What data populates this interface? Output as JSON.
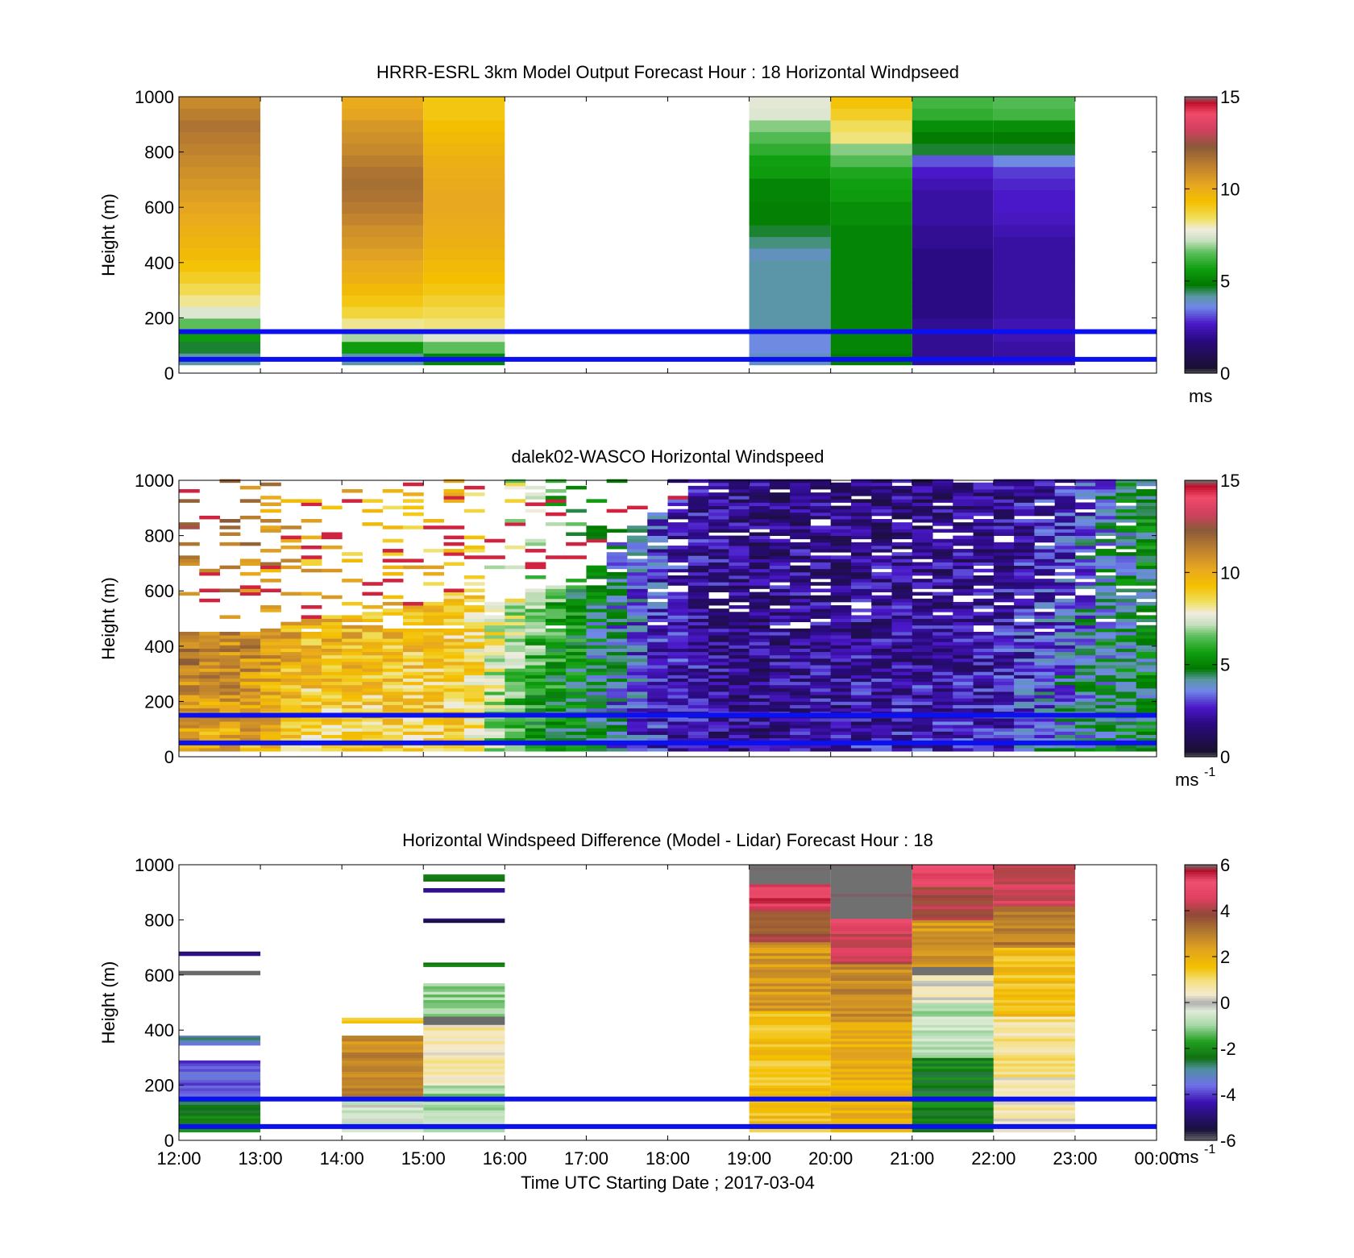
{
  "figure": {
    "xlabel": "Time UTC  Starting Date ; 2017-03-04",
    "x_ticks": [
      "12:00",
      "13:00",
      "14:00",
      "15:00",
      "16:00",
      "17:00",
      "18:00",
      "19:00",
      "20:00",
      "21:00",
      "22:00",
      "23:00",
      "00:00"
    ],
    "ylabel": "Height (m)",
    "y_ticks": [
      "0",
      "200",
      "400",
      "600",
      "800",
      "1000"
    ],
    "reference_line_color": "#0a10f0"
  },
  "chart_data": [
    {
      "type": "heatmap",
      "title": "HRRR-ESRL 3km Model Output   Forecast Hour : 18 Horizontal Windpseed",
      "xlabel": "",
      "ylabel": "Height (m)",
      "xlim_hours": [
        12,
        24
      ],
      "ylim": [
        0,
        1000
      ],
      "colorbar": {
        "ticks": [
          "0",
          "5",
          "10",
          "15"
        ],
        "range": [
          0,
          15
        ],
        "unit_label": "ms",
        "unit_sup": ""
      },
      "reference_heights_m": [
        150,
        50
      ],
      "columns": [
        {
          "t0": 12,
          "t1": 13,
          "bottom_m": 30,
          "values": [
            4,
            4.5,
            5.5,
            6.5,
            7.5,
            8.2,
            8.6,
            9,
            9.3,
            9.6,
            9.8,
            10,
            10.2,
            10.4,
            10.6,
            10.8,
            11,
            11.2,
            11.4,
            11.6,
            11.8,
            11.5,
            11.2
          ]
        },
        {
          "t0": 14,
          "t1": 15,
          "bottom_m": 30,
          "values": [
            4,
            5.5,
            7,
            8.2,
            8.8,
            9.2,
            9.6,
            10,
            10.2,
            10.5,
            10.8,
            11,
            11.3,
            11.6,
            11.8,
            11.9,
            11.8,
            11.5,
            11.2,
            11,
            10.8,
            10.4,
            10.2
          ]
        },
        {
          "t0": 15,
          "t1": 16,
          "bottom_m": 30,
          "values": [
            5,
            6.5,
            7.5,
            8.3,
            8.6,
            8.9,
            9.2,
            9.4,
            9.6,
            9.8,
            10,
            10.1,
            10.2,
            10.3,
            10.3,
            10.2,
            10.1,
            10,
            9.8,
            9.6,
            9.4,
            9.2,
            9.2
          ]
        },
        {
          "t0": 19,
          "t1": 20,
          "bottom_m": 30,
          "values": [
            3.8,
            3.5,
            3.5,
            4,
            4,
            4,
            4,
            4,
            4,
            3.8,
            4.2,
            4.5,
            4.9,
            4.9,
            5,
            5,
            5.5,
            5.6,
            6,
            6.4,
            6.8,
            7.5,
            7.6
          ]
        },
        {
          "t0": 20,
          "t1": 21,
          "bottom_m": 30,
          "values": [
            4.8,
            5,
            5,
            5,
            5,
            5,
            5,
            5,
            5,
            5,
            5,
            5,
            5.2,
            5.2,
            5.5,
            5.6,
            5.8,
            6.4,
            6.8,
            8.3,
            8.5,
            9,
            9.3
          ]
        },
        {
          "t0": 21,
          "t1": 22,
          "bottom_m": 30,
          "values": [
            1.8,
            1.8,
            1.8,
            1.8,
            1.6,
            1.6,
            1.6,
            1.6,
            1.6,
            1.6,
            1.8,
            1.8,
            2,
            2,
            2,
            2.2,
            2.5,
            3,
            4.5,
            4.8,
            5.2,
            6,
            6.2
          ]
        },
        {
          "t0": 22,
          "t1": 23,
          "bottom_m": 30,
          "values": [
            2,
            2,
            2.2,
            2.2,
            2,
            2,
            2,
            2,
            2,
            2,
            2,
            2.2,
            2.4,
            2.5,
            2.5,
            2.6,
            2.8,
            3.5,
            4.5,
            4.8,
            5.2,
            6.2,
            6.4
          ]
        }
      ]
    },
    {
      "type": "heatmap",
      "title": "dalek02-WASCO  Horizontal Windspeed",
      "xlabel": "",
      "ylabel": "Height (m)",
      "xlim_hours": [
        12,
        24
      ],
      "ylim": [
        0,
        1000
      ],
      "colorbar": {
        "ticks": [
          "0",
          "5",
          "10",
          "15"
        ],
        "range": [
          0,
          15
        ],
        "unit_label": "ms",
        "unit_sup": "-1"
      },
      "reference_heights_m": [
        150,
        50
      ],
      "bin_minutes": 15,
      "base_profile_by_hour": {
        "hours": [
          12.0,
          13.0,
          13.5,
          14.0,
          15.0,
          15.5,
          16.0,
          16.5,
          17.0,
          17.5,
          18.0,
          18.5,
          19.0,
          20.0,
          21.0,
          22.0,
          23.0,
          23.5,
          23.9
        ],
        "near_surface_ms": [
          10,
          10,
          8.5,
          8.5,
          9,
          9,
          6,
          4.8,
          4.5,
          3,
          2.2,
          1.8,
          1.6,
          2,
          2.2,
          2.5,
          4,
          4.5,
          4.5
        ],
        "aloft_ms": [
          12,
          11,
          10,
          10,
          9.5,
          9,
          8,
          6.5,
          5,
          3.5,
          2.5,
          1.8,
          1.6,
          1.5,
          1.5,
          1.4,
          2.5,
          4,
          4.8
        ],
        "max_height_m": [
          450,
          450,
          500,
          500,
          550,
          580,
          550,
          600,
          650,
          800,
          900,
          1000,
          1000,
          1000,
          1000,
          1000,
          1000,
          900,
          750
        ]
      }
    },
    {
      "type": "heatmap",
      "title": "Horizontal Windspeed Difference (Model - Lidar) Forecast Hour : 18",
      "xlabel": "Time UTC  Starting Date ; 2017-03-04",
      "ylabel": "Height (m)",
      "xlim_hours": [
        12,
        24
      ],
      "ylim": [
        0,
        1000
      ],
      "colorbar": {
        "ticks": [
          "-6",
          "-4",
          "-2",
          "0",
          "2",
          "4",
          "6"
        ],
        "range": [
          -6,
          6
        ],
        "unit_label": "ms",
        "unit_sup": "-1"
      },
      "reference_heights_m": [
        150,
        50
      ],
      "columns": [
        {
          "t0": 12,
          "t1": 13,
          "bands": [
            {
              "z0": 30,
              "z1": 160,
              "v": -2.3
            },
            {
              "z0": 160,
              "z1": 290,
              "v": -3.8
            },
            {
              "z0": 345,
              "z1": 380,
              "v": -3
            },
            {
              "z0": 600,
              "z1": 615,
              "v": -6.4
            },
            {
              "z0": 670,
              "z1": 685,
              "v": -5
            }
          ]
        },
        {
          "t0": 14,
          "t1": 15,
          "bands": [
            {
              "z0": 30,
              "z1": 150,
              "v": -0.5
            },
            {
              "z0": 150,
              "z1": 380,
              "v": 2.8
            },
            {
              "z0": 425,
              "z1": 445,
              "v": 1.3
            }
          ]
        },
        {
          "t0": 15,
          "t1": 16,
          "bands": [
            {
              "z0": 30,
              "z1": 200,
              "v": -1
            },
            {
              "z0": 200,
              "z1": 420,
              "v": 0.6
            },
            {
              "z0": 420,
              "z1": 450,
              "v": -6.4
            },
            {
              "z0": 450,
              "z1": 570,
              "v": -1
            },
            {
              "z0": 630,
              "z1": 645,
              "v": -2.5
            },
            {
              "z0": 790,
              "z1": 805,
              "v": -5
            },
            {
              "z0": 900,
              "z1": 915,
              "v": -5
            },
            {
              "z0": 940,
              "z1": 965,
              "v": -2.5
            }
          ]
        },
        {
          "t0": 19,
          "t1": 20,
          "bands": [
            {
              "z0": 30,
              "z1": 470,
              "v": 1.6
            },
            {
              "z0": 470,
              "z1": 720,
              "v": 2.5
            },
            {
              "z0": 720,
              "z1": 840,
              "v": 3.8
            },
            {
              "z0": 840,
              "z1": 930,
              "v": 5.3
            },
            {
              "z0": 930,
              "z1": 1000,
              "v": 6.4
            }
          ]
        },
        {
          "t0": 20,
          "t1": 21,
          "bands": [
            {
              "z0": 30,
              "z1": 430,
              "v": 2
            },
            {
              "z0": 430,
              "z1": 640,
              "v": 2.8
            },
            {
              "z0": 640,
              "z1": 790,
              "v": 4.5
            },
            {
              "z0": 790,
              "z1": 805,
              "v": 5.5
            },
            {
              "z0": 805,
              "z1": 1000,
              "v": 6.4
            }
          ]
        },
        {
          "t0": 21,
          "t1": 22,
          "bands": [
            {
              "z0": 30,
              "z1": 300,
              "v": -2.2
            },
            {
              "z0": 300,
              "z1": 500,
              "v": -0.8
            },
            {
              "z0": 500,
              "z1": 600,
              "v": 0.2
            },
            {
              "z0": 600,
              "z1": 630,
              "v": 6.4
            },
            {
              "z0": 630,
              "z1": 800,
              "v": 2.5
            },
            {
              "z0": 800,
              "z1": 920,
              "v": 4
            },
            {
              "z0": 920,
              "z1": 1000,
              "v": 5
            }
          ]
        },
        {
          "t0": 22,
          "t1": 23,
          "bands": [
            {
              "z0": 30,
              "z1": 230,
              "v": 0.5
            },
            {
              "z0": 230,
              "z1": 450,
              "v": 0.8
            },
            {
              "z0": 450,
              "z1": 700,
              "v": 1.6
            },
            {
              "z0": 700,
              "z1": 850,
              "v": 3
            },
            {
              "z0": 850,
              "z1": 1000,
              "v": 4.5
            }
          ]
        }
      ]
    }
  ]
}
